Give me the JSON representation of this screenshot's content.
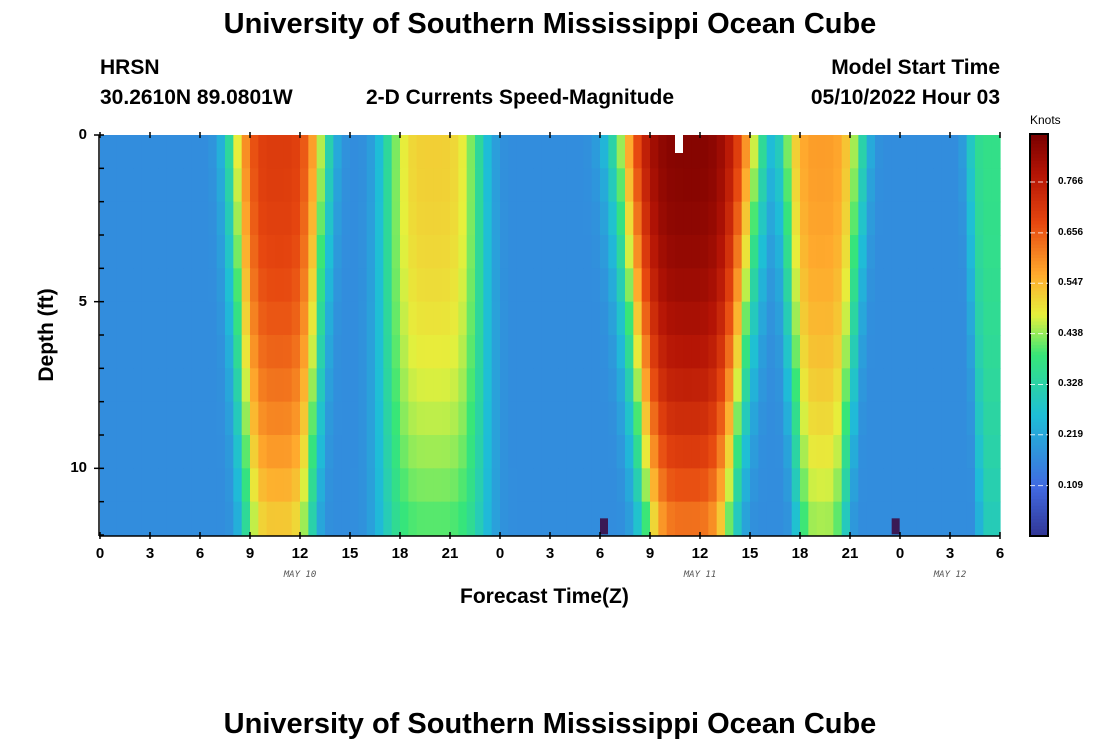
{
  "header": {
    "title": "University of Southern Mississippi Ocean Cube",
    "station": "HRSN",
    "coords": "30.2610N  89.0801W",
    "subtitle": "2-D Currents Speed-Magnitude",
    "model_label": "Model Start Time",
    "model_time": "05/10/2022 Hour 03"
  },
  "footer": {
    "title": "University of Southern Mississippi Ocean Cube"
  },
  "chart_data": {
    "type": "heatmap",
    "title": "2-D Currents Speed-Magnitude",
    "xlabel": "Forecast Time(Z)",
    "ylabel": "Depth (ft)",
    "colorbar_label": "Knots",
    "x_hours": [
      0,
      54
    ],
    "y_range_ft": [
      0,
      12
    ],
    "y_ticks": [
      "0",
      "5",
      "10"
    ],
    "x_tick_labels": [
      "0",
      "3",
      "6",
      "9",
      "12",
      "15",
      "18",
      "21",
      "0",
      "3",
      "6",
      "9",
      "12",
      "15",
      "18",
      "21",
      "0",
      "3",
      "6"
    ],
    "date_labels": [
      {
        "label": "MAY 10",
        "hour": 12
      },
      {
        "label": "MAY 11",
        "hour": 36
      },
      {
        "label": "MAY 12",
        "hour": 51
      }
    ],
    "colorbar_ticks": [
      "0.109",
      "0.219",
      "0.328",
      "0.438",
      "0.547",
      "0.656",
      "0.766"
    ],
    "colorbar_range": [
      0.0,
      0.87
    ],
    "peaks": [
      {
        "center_hour": 10.7,
        "half_width_top": 2.9,
        "half_width_bottom": 2.1,
        "max": 0.7
      },
      {
        "center_hour": 20.0,
        "half_width_top": 3.0,
        "half_width_bottom": 3.2,
        "max": 0.52
      },
      {
        "center_hour": 35.3,
        "half_width_top": 4.2,
        "half_width_bottom": 2.7,
        "max": 0.85
      },
      {
        "center_hour": 43.3,
        "half_width_top": 2.5,
        "half_width_bottom": 1.5,
        "max": 0.58
      },
      {
        "center_hour": 53.5,
        "half_width_top": 1.5,
        "half_width_bottom": 0.8,
        "max": 0.37
      }
    ],
    "baseline": 0.17,
    "missing_cells": [
      {
        "hour": 34.5,
        "depth_ft": 0.0
      },
      {
        "hour": 30.0,
        "depth_ft": 11.5
      },
      {
        "hour": 47.5,
        "depth_ft": 11.5
      }
    ]
  }
}
